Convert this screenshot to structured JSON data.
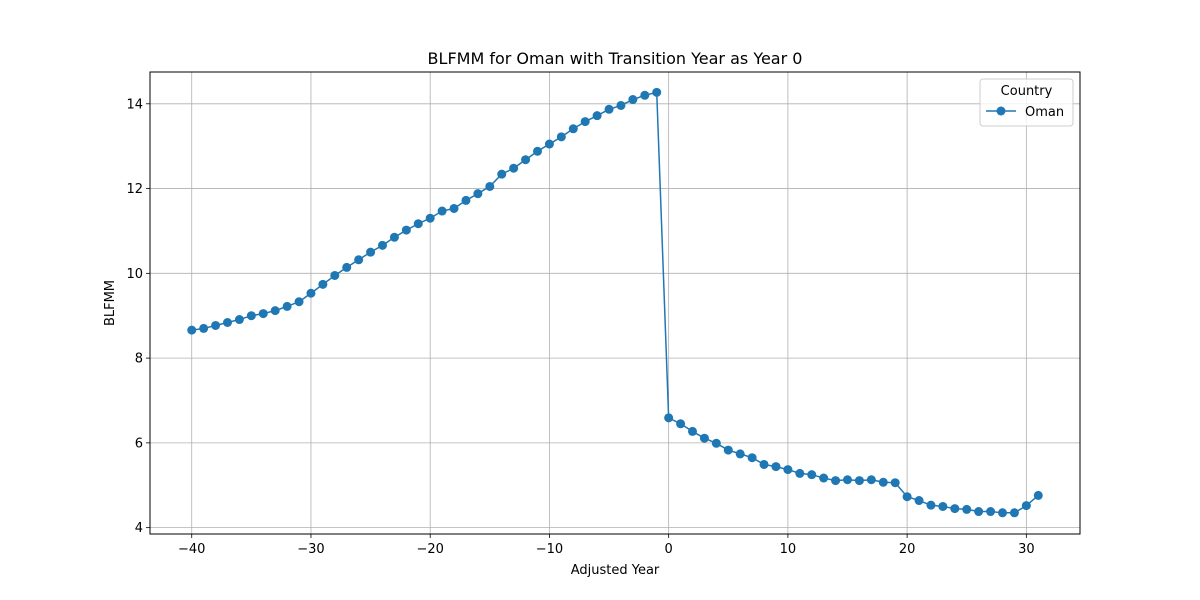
{
  "chart_data": {
    "type": "line",
    "title": "BLFMM for Oman with Transition Year as Year 0",
    "xlabel": "Adjusted Year",
    "ylabel": "BLFMM",
    "xlim": [
      -43.5,
      34.5
    ],
    "ylim": [
      3.85,
      14.75
    ],
    "xticks": [
      -40,
      -30,
      -20,
      -10,
      0,
      10,
      20,
      30
    ],
    "xtick_labels": [
      "−40",
      "−30",
      "−20",
      "−10",
      "0",
      "10",
      "20",
      "30"
    ],
    "yticks": [
      4,
      6,
      8,
      10,
      12,
      14
    ],
    "ytick_labels": [
      "4",
      "6",
      "8",
      "10",
      "12",
      "14"
    ],
    "grid": true,
    "legend": {
      "title": "Country",
      "placement": "top-right"
    },
    "series": [
      {
        "name": "Oman",
        "color": "#1f77b4",
        "marker": "circle",
        "x": [
          -40,
          -39,
          -38,
          -37,
          -36,
          -35,
          -34,
          -33,
          -32,
          -31,
          -30,
          -29,
          -28,
          -27,
          -26,
          -25,
          -24,
          -23,
          -22,
          -21,
          -20,
          -19,
          -18,
          -17,
          -16,
          -15,
          -14,
          -13,
          -12,
          -11,
          -10,
          -9,
          -8,
          -7,
          -6,
          -5,
          -4,
          -3,
          -2,
          -1,
          0,
          1,
          2,
          3,
          4,
          5,
          6,
          7,
          8,
          9,
          10,
          11,
          12,
          13,
          14,
          15,
          16,
          17,
          18,
          19,
          20,
          21,
          22,
          23,
          24,
          25,
          26,
          27,
          28,
          29,
          30,
          31
        ],
        "y": [
          8.66,
          8.7,
          8.77,
          8.84,
          8.91,
          9.0,
          9.05,
          9.12,
          9.22,
          9.33,
          9.53,
          9.74,
          9.95,
          10.14,
          10.32,
          10.5,
          10.66,
          10.85,
          11.02,
          11.17,
          11.3,
          11.47,
          11.53,
          11.72,
          11.88,
          12.05,
          12.34,
          12.48,
          12.68,
          12.88,
          13.05,
          13.22,
          13.41,
          13.58,
          13.72,
          13.87,
          13.96,
          14.1,
          14.2,
          14.27,
          6.59,
          6.45,
          6.27,
          6.11,
          5.99,
          5.83,
          5.74,
          5.65,
          5.49,
          5.44,
          5.37,
          5.28,
          5.25,
          5.17,
          5.11,
          5.13,
          5.11,
          5.13,
          5.07,
          5.06,
          4.73,
          4.64,
          4.53,
          4.5,
          4.45,
          4.43,
          4.38,
          4.38,
          4.35,
          4.35,
          4.52,
          4.76
        ]
      }
    ]
  }
}
